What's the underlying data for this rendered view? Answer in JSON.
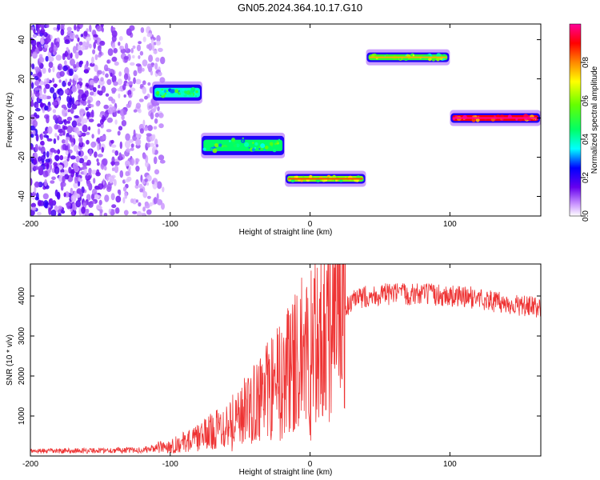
{
  "title": "GN05.2024.364.10.17.G10",
  "colors": {
    "snr_line": "#ee3333",
    "frame": "#000000",
    "background": "#ffffff"
  },
  "chart_data": [
    {
      "type": "heatmap",
      "xlabel": "Height of straight line (km)",
      "ylabel": "Frequency (Hz)",
      "xlim": [
        -200,
        165
      ],
      "ylim": [
        -50,
        48
      ],
      "x_ticks": [
        -200,
        -100,
        0,
        100
      ],
      "y_ticks": [
        -40,
        -20,
        0,
        20,
        40
      ],
      "colorbar": {
        "label": "Normalized spectral amplitude",
        "range": [
          0.0,
          1.0
        ],
        "ticks": [
          "0.0",
          "0.2",
          "0.4",
          "0.6",
          "0.8"
        ],
        "tick_values": [
          0.0,
          0.2,
          0.4,
          0.6,
          0.8
        ]
      },
      "segments": [
        {
          "x": [
            -113,
            -77
          ],
          "freq": 13,
          "amplitude": 0.38
        },
        {
          "x": [
            -78,
            -18
          ],
          "freq": -14,
          "amplitude": 0.45
        },
        {
          "x": [
            -18,
            40
          ],
          "freq": -31,
          "amplitude": 0.6
        },
        {
          "x": [
            40,
            100
          ],
          "freq": 31,
          "amplitude": 0.52
        },
        {
          "x": [
            100,
            165
          ],
          "freq": 0,
          "amplitude": 0.9
        }
      ],
      "noise_region": {
        "x": [
          -200,
          -105
        ],
        "freq": [
          -50,
          48
        ],
        "amplitude": 0.08
      }
    },
    {
      "type": "line",
      "xlabel": "Height of straight line (km)",
      "ylabel": "SNR (10 * v/v)",
      "xlim": [
        -200,
        165
      ],
      "ylim": [
        0,
        4800
      ],
      "x_ticks": [
        -200,
        -100,
        0,
        100
      ],
      "y_ticks": [
        1000,
        2000,
        3000,
        4000
      ],
      "envelope": {
        "x": [
          -200,
          -120,
          -100,
          -80,
          -60,
          -40,
          -20,
          0,
          10,
          20,
          30,
          40,
          60,
          80,
          100,
          120,
          140,
          165
        ],
        "y": [
          120,
          150,
          250,
          450,
          800,
          1300,
          2000,
          2800,
          3200,
          3500,
          3850,
          4000,
          4050,
          4050,
          4000,
          3950,
          3800,
          3700
        ]
      }
    }
  ]
}
